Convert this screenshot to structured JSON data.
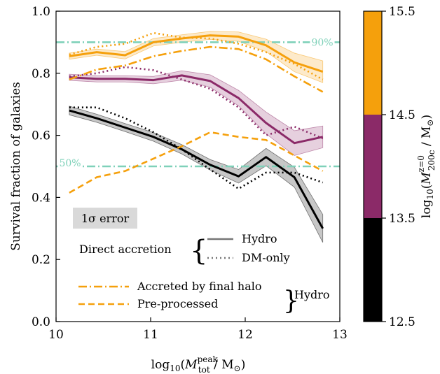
{
  "chart_data": {
    "type": "line",
    "ylabel": "Survival fraction of galaxies",
    "xlabel_parts": {
      "prefix": "log",
      "sub": "10",
      "open": "(",
      "M": "M",
      "M_sub": "tot",
      "M_sup": "peak",
      "unit": " / M",
      "sun": "⊙",
      "close": ")"
    },
    "xlim": [
      10,
      13
    ],
    "ylim": [
      0.0,
      1.0
    ],
    "xticks": [
      10,
      11,
      12,
      13
    ],
    "xtick_labels": [
      "10",
      "11",
      "12",
      "13"
    ],
    "yticks": [
      0.0,
      0.2,
      0.4,
      0.6,
      0.8,
      1.0
    ],
    "ytick_labels": [
      "0.0",
      "0.2",
      "0.4",
      "0.6",
      "0.8",
      "1.0"
    ],
    "reference_lines": [
      {
        "y": 0.9,
        "label": "90%",
        "color": "#7fd1b9"
      },
      {
        "y": 0.5,
        "label": "50%",
        "color": "#7fd1b9"
      }
    ],
    "x": [
      10.14,
      10.43,
      10.73,
      11.03,
      11.33,
      11.63,
      11.93,
      12.22,
      12.52,
      12.82
    ],
    "series": [
      {
        "group": "12.5-13.5",
        "color": "#000000",
        "style": "solid",
        "values": [
          0.68,
          0.655,
          0.625,
          0.595,
          0.555,
          0.505,
          0.468,
          0.53,
          0.465,
          0.3
        ],
        "band": [
          0.014,
          0.013,
          0.013,
          0.014,
          0.015,
          0.017,
          0.022,
          0.028,
          0.032,
          0.045
        ]
      },
      {
        "group": "12.5-13.5",
        "color": "#000000",
        "style": "dotted",
        "values": [
          0.69,
          0.69,
          0.655,
          0.61,
          0.555,
          0.49,
          0.428,
          0.48,
          0.48,
          0.448
        ]
      },
      {
        "group": "13.5-14.5",
        "color": "#8b2a68",
        "style": "solid",
        "values": [
          0.787,
          0.782,
          0.782,
          0.778,
          0.793,
          0.775,
          0.72,
          0.64,
          0.575,
          0.595
        ],
        "band": [
          0.01,
          0.01,
          0.01,
          0.012,
          0.015,
          0.02,
          0.025,
          0.035,
          0.04,
          0.035
        ]
      },
      {
        "group": "13.5-14.5",
        "color": "#8b2a68",
        "style": "dotted",
        "values": [
          0.79,
          0.8,
          0.82,
          0.81,
          0.78,
          0.75,
          0.69,
          0.6,
          0.628,
          0.59
        ]
      },
      {
        "group": "14.5-15.5",
        "color": "#f5a00c",
        "style": "solid",
        "values": [
          0.855,
          0.868,
          0.858,
          0.9,
          0.912,
          0.922,
          0.918,
          0.89,
          0.835,
          0.805
        ],
        "band": [
          0.01,
          0.01,
          0.012,
          0.012,
          0.012,
          0.013,
          0.015,
          0.02,
          0.03,
          0.035
        ]
      },
      {
        "group": "14.5-15.5",
        "color": "#f5a00c",
        "style": "dotted",
        "values": [
          0.86,
          0.885,
          0.895,
          0.93,
          0.915,
          0.912,
          0.895,
          0.868,
          0.83,
          0.78
        ]
      },
      {
        "group": "14.5-15.5",
        "color": "#f5a00c",
        "style": "dashdot",
        "values": [
          0.78,
          0.812,
          0.825,
          0.855,
          0.872,
          0.885,
          0.878,
          0.845,
          0.79,
          0.74
        ]
      },
      {
        "group": "pre-processed",
        "color": "#f5a00c",
        "style": "dashed",
        "values": [
          0.415,
          0.465,
          0.485,
          0.525,
          0.565,
          0.61,
          0.595,
          0.585,
          0.535,
          0.485
        ]
      }
    ],
    "legend": {
      "error_label": "1σ error",
      "direct_accretion": "Direct accretion",
      "hydro": "Hydro",
      "dm_only": "DM-only",
      "accreted": "Accreted by final halo",
      "preprocessed": "Pre-processed",
      "hydro_group": "Hydro"
    },
    "colorbar": {
      "bounds": [
        12.5,
        13.5,
        14.5,
        15.5
      ],
      "tick_labels": [
        "12.5",
        "13.5",
        "14.5",
        "15.5"
      ],
      "colors": [
        "#000000",
        "#8b2a68",
        "#f5a00c"
      ],
      "label_parts": {
        "prefix": "log",
        "sub": "10",
        "open": "(",
        "M": "M",
        "M_sub": "200c",
        "M_sup": "z=0",
        "unit": " / M",
        "sun": "⊙",
        "close": ")"
      }
    }
  }
}
